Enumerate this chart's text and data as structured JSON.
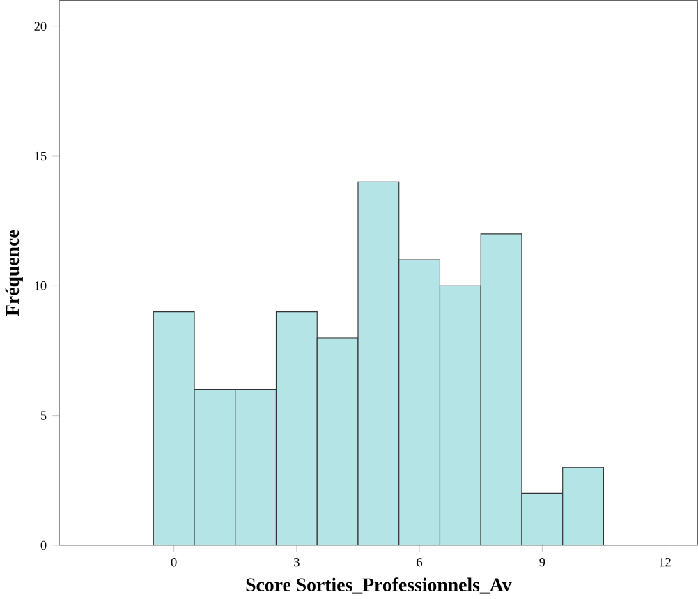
{
  "chart_data": {
    "type": "histogram",
    "xlabel": "Score Sorties_Professionnels_Av",
    "ylabel": "Fréquence",
    "bins": [
      -0.5,
      0.5,
      1.5,
      2.5,
      3.5,
      4.5,
      5.5,
      6.5,
      7.5,
      8.5,
      9.5,
      10.5
    ],
    "values": [
      9,
      6,
      6,
      9,
      8,
      14,
      11,
      10,
      12,
      2,
      3
    ],
    "color": "#b4e4e6",
    "xlim": [
      -2.8,
      12.8
    ],
    "ylim": [
      0,
      21
    ],
    "xticks": [
      0,
      3,
      6,
      9,
      12
    ],
    "yticks": [
      0,
      5,
      10,
      15,
      20
    ],
    "grid": false
  }
}
